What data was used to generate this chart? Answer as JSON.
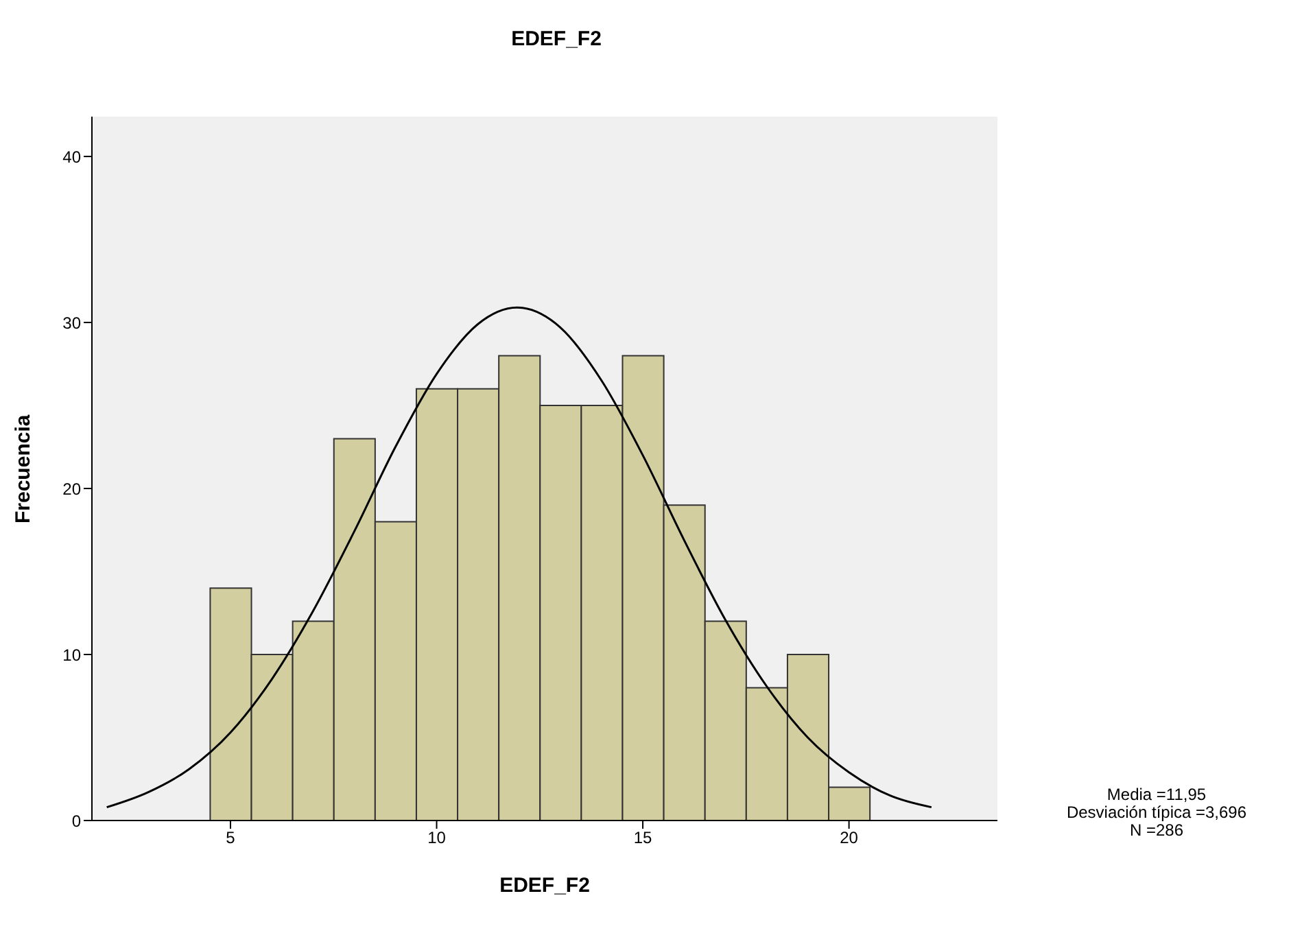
{
  "chart_data": {
    "type": "histogram",
    "title": "EDEF_F2",
    "xlabel": "EDEF_F2",
    "ylabel": "Frecuencia",
    "bins": [
      4.5,
      5.5,
      6.5,
      7.5,
      8.5,
      9.5,
      10.5,
      11.5,
      12.5,
      13.5,
      14.5,
      15.5,
      16.5,
      17.5,
      18.5,
      19.5,
      20.5
    ],
    "values": [
      14,
      10,
      12,
      23,
      18,
      26,
      26,
      28,
      25,
      25,
      28,
      19,
      12,
      8,
      10,
      2
    ],
    "color": "#d3ce9f",
    "series": [
      {
        "type": "line",
        "color": "#000000",
        "marker": "none",
        "x": [
          2,
          3,
          4,
          5,
          6,
          7,
          8,
          9,
          10,
          11,
          11.95,
          13,
          14,
          15,
          16,
          17,
          18,
          19,
          20,
          21,
          22
        ],
        "values": [
          0.8,
          1.7,
          3.1,
          5.3,
          8.5,
          12.6,
          17.4,
          22.5,
          26.9,
          29.9,
          30.9,
          29.7,
          26.5,
          22.0,
          16.9,
          12.1,
          8.1,
          5.0,
          2.9,
          1.5,
          0.8
        ]
      }
    ],
    "xlim": [
      1.64,
      23.6
    ],
    "xticks": [
      5,
      10,
      15,
      20
    ],
    "ylim": [
      0,
      42.4
    ],
    "yticks": [
      0,
      10,
      20,
      30,
      40
    ],
    "annotations": [
      "Media =11,95",
      "Desviación típica =3,696",
      "N =286"
    ]
  }
}
